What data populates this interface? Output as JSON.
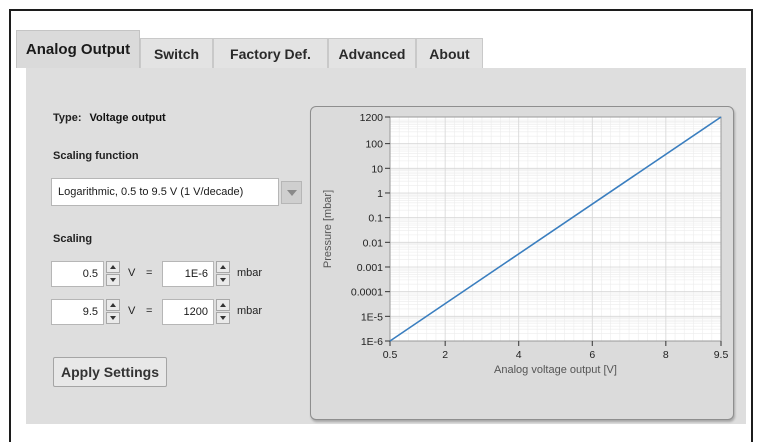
{
  "tabs": [
    {
      "label": "Analog Output",
      "active": true
    },
    {
      "label": "Switch",
      "active": false
    },
    {
      "label": "Factory Def.",
      "active": false
    },
    {
      "label": "Advanced",
      "active": false
    },
    {
      "label": "About",
      "active": false
    }
  ],
  "type": {
    "label": "Type:",
    "value": "Voltage output"
  },
  "scaling_function": {
    "label": "Scaling function",
    "selected": "Logarithmic, 0.5 to 9.5 V (1 V/decade)"
  },
  "scaling": {
    "label": "Scaling",
    "rows": [
      {
        "voltage": "0.5",
        "volt_unit": "V",
        "equals": "=",
        "pressure": "1E-6",
        "pressure_unit": "mbar"
      },
      {
        "voltage": "9.5",
        "volt_unit": "V",
        "equals": "=",
        "pressure": "1200",
        "pressure_unit": "mbar"
      }
    ]
  },
  "apply_button": "Apply Settings",
  "colors": {
    "line": "#3a7ebf",
    "grid_major": "#d6d6d6",
    "grid_minor": "#ececec"
  },
  "chart_data": {
    "type": "line",
    "xlabel": "Analog voltage output  [V]",
    "ylabel": "Pressure [mbar]",
    "xlim": [
      0.5,
      9.5
    ],
    "ylim_log10": [
      -6,
      3.0792
    ],
    "y_scale": "log",
    "grid": true,
    "x_ticks": [
      {
        "value": 0.5,
        "label": "0.5"
      },
      {
        "value": 2,
        "label": "2"
      },
      {
        "value": 4,
        "label": "4"
      },
      {
        "value": 6,
        "label": "6"
      },
      {
        "value": 8,
        "label": "8"
      },
      {
        "value": 9.5,
        "label": "9.5"
      }
    ],
    "y_ticks": [
      {
        "value": 1200,
        "label": "1200"
      },
      {
        "value": 100,
        "label": "100"
      },
      {
        "value": 10,
        "label": "10"
      },
      {
        "value": 1,
        "label": "1"
      },
      {
        "value": 0.1,
        "label": "0.1"
      },
      {
        "value": 0.01,
        "label": "0.01"
      },
      {
        "value": 0.001,
        "label": "0.001"
      },
      {
        "value": 0.0001,
        "label": "0.0001"
      },
      {
        "value": 1e-05,
        "label": "1E-5"
      },
      {
        "value": 1e-06,
        "label": "1E-6"
      }
    ],
    "series": [
      {
        "x": [
          0.5,
          9.5
        ],
        "y": [
          1e-06,
          1200
        ]
      }
    ]
  }
}
